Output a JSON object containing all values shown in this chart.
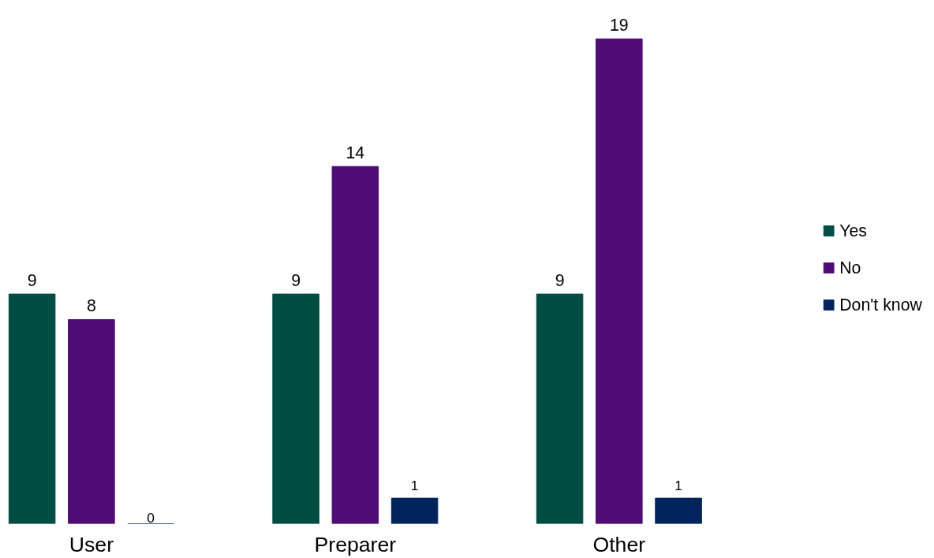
{
  "chart_data": {
    "type": "bar",
    "categories": [
      "User",
      "Preparer",
      "Other"
    ],
    "series": [
      {
        "name": "Yes",
        "color": "#004d44",
        "values": [
          9,
          9,
          9
        ]
      },
      {
        "name": "No",
        "color": "#4f0b76",
        "values": [
          8,
          14,
          19
        ]
      },
      {
        "name": "Don't know",
        "color": "#00245c",
        "values": [
          0,
          1,
          1
        ]
      }
    ],
    "data_labels": true,
    "legend": "right",
    "grid": false
  }
}
